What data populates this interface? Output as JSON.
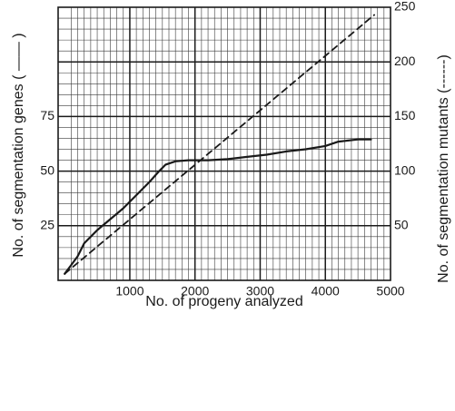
{
  "chart_data": {
    "type": "line",
    "xlabel": "No. of progeny analyzed",
    "ylabel_left": "No. of segmentation genes ( —— )",
    "ylabel_right": "No. of segmentation mutants (------)",
    "x_ticks": [
      "1000",
      "2000",
      "3000",
      "4000",
      "5000"
    ],
    "y_left_ticks": [
      "25",
      "50",
      "75"
    ],
    "y_right_ticks": [
      "50",
      "100",
      "150",
      "200",
      "250"
    ],
    "xlim": [
      -100,
      5000
    ],
    "ylim_left": [
      0,
      125
    ],
    "ylim_right": [
      0,
      250
    ],
    "grid": true,
    "series": [
      {
        "axis": "left",
        "style": "solid",
        "x": [
          0,
          100,
          200,
          300,
          500,
          700,
          900,
          1100,
          1300,
          1450,
          1550,
          1700,
          1900,
          2200,
          2500,
          2800,
          3100,
          3400,
          3700,
          4000,
          4200,
          4500,
          4700
        ],
        "y": [
          3,
          7,
          11,
          17,
          23,
          28,
          33,
          39,
          45,
          50,
          53,
          54.5,
          55,
          55,
          55.5,
          56.5,
          57.5,
          59,
          60,
          61.5,
          63.5,
          64.5,
          64.5
        ]
      },
      {
        "axis": "right",
        "style": "dashed",
        "x": [
          0,
          4750
        ],
        "y": [
          6,
          243
        ]
      }
    ]
  }
}
